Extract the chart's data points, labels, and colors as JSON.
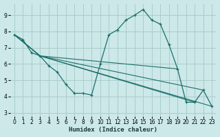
{
  "xlabel": "Humidex (Indice chaleur)",
  "bg_color": "#cce8e8",
  "grid_color": "#aacccc",
  "line_color": "#1a6e6a",
  "xlim": [
    -0.5,
    23.5
  ],
  "ylim": [
    2.8,
    9.7
  ],
  "yticks": [
    3,
    4,
    5,
    6,
    7,
    8,
    9
  ],
  "xticks": [
    0,
    1,
    2,
    3,
    4,
    5,
    6,
    7,
    8,
    9,
    10,
    11,
    12,
    13,
    14,
    15,
    16,
    17,
    18,
    19,
    20,
    21,
    22,
    23
  ],
  "main_curve": {
    "x": [
      0,
      1,
      2,
      3,
      4,
      5,
      6,
      7,
      8,
      9,
      10,
      11,
      12,
      13,
      14,
      15,
      16,
      17,
      18,
      19,
      20,
      21,
      22,
      23
    ],
    "y": [
      7.8,
      7.5,
      6.7,
      6.5,
      5.9,
      5.5,
      4.75,
      4.2,
      4.2,
      4.1,
      6.0,
      7.8,
      8.1,
      8.7,
      9.0,
      9.35,
      8.7,
      8.45,
      7.2,
      5.7,
      3.65,
      3.65,
      4.4,
      3.4
    ]
  },
  "trend_lines": [
    {
      "x": [
        0,
        3,
        23
      ],
      "y": [
        7.8,
        6.5,
        3.4
      ]
    },
    {
      "x": [
        0,
        3,
        22
      ],
      "y": [
        7.8,
        6.5,
        4.4
      ]
    },
    {
      "x": [
        0,
        3,
        21
      ],
      "y": [
        7.8,
        6.5,
        3.65
      ]
    },
    {
      "x": [
        0,
        3,
        19
      ],
      "y": [
        7.8,
        6.5,
        5.7
      ]
    }
  ]
}
